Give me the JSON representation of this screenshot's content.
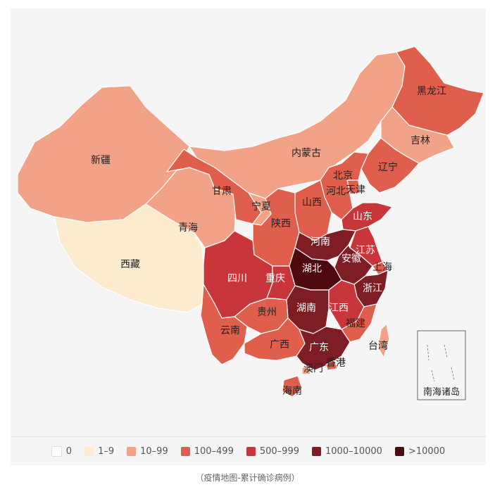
{
  "legend": [
    {
      "label": "0",
      "color": "#ffffff"
    },
    {
      "label": "1–9",
      "color": "#fdebcf"
    },
    {
      "label": "10–99",
      "color": "#f2a286"
    },
    {
      "label": "100–499",
      "color": "#e05e4c"
    },
    {
      "label": "500–999",
      "color": "#c8363b"
    },
    {
      "label": "1000–10000",
      "color": "#7f1d24"
    },
    {
      "label": ">10000",
      "color": "#4f0a0f"
    }
  ],
  "provinces": [
    {
      "id": "xinjiang",
      "name": "新疆",
      "level": 2
    },
    {
      "id": "xizang",
      "name": "西藏",
      "level": 1
    },
    {
      "id": "qinghai",
      "name": "青海",
      "level": 2
    },
    {
      "id": "gansu",
      "name": "甘肃",
      "level": 3
    },
    {
      "id": "neimenggu",
      "name": "内蒙古",
      "level": 2
    },
    {
      "id": "heilongjiang",
      "name": "黑龙江",
      "level": 3
    },
    {
      "id": "jilin",
      "name": "吉林",
      "level": 2
    },
    {
      "id": "liaoning",
      "name": "辽宁",
      "level": 3
    },
    {
      "id": "beijing",
      "name": "北京",
      "level": 3
    },
    {
      "id": "tianjin",
      "name": "天津",
      "level": 3
    },
    {
      "id": "hebei",
      "name": "河北",
      "level": 3
    },
    {
      "id": "shanxi",
      "name": "山西",
      "level": 3
    },
    {
      "id": "ningxia",
      "name": "宁夏",
      "level": 2
    },
    {
      "id": "shaanxi",
      "name": "陕西",
      "level": 3
    },
    {
      "id": "shandong",
      "name": "山东",
      "level": 4
    },
    {
      "id": "henan",
      "name": "河南",
      "level": 5
    },
    {
      "id": "jiangsu",
      "name": "江苏",
      "level": 4
    },
    {
      "id": "anhui",
      "name": "安徽",
      "level": 5
    },
    {
      "id": "shanghai",
      "name": "上海",
      "level": 3
    },
    {
      "id": "hubei",
      "name": "湖北",
      "level": 6
    },
    {
      "id": "sichuan",
      "name": "四川",
      "level": 4
    },
    {
      "id": "chongqing",
      "name": "重庆",
      "level": 4
    },
    {
      "id": "zhejiang",
      "name": "浙江",
      "level": 5
    },
    {
      "id": "hunan",
      "name": "湖南",
      "level": 5
    },
    {
      "id": "jiangxi",
      "name": "江西",
      "level": 4
    },
    {
      "id": "guizhou",
      "name": "贵州",
      "level": 3
    },
    {
      "id": "fujian",
      "name": "福建",
      "level": 3
    },
    {
      "id": "yunnan",
      "name": "云南",
      "level": 3
    },
    {
      "id": "guangxi",
      "name": "广西",
      "level": 3
    },
    {
      "id": "guangdong",
      "name": "广东",
      "level": 5
    },
    {
      "id": "xianggang",
      "name": "香港",
      "level": 3
    },
    {
      "id": "aomen",
      "name": "澳门",
      "level": 2
    },
    {
      "id": "taiwan",
      "name": "台湾",
      "level": 2
    },
    {
      "id": "hainan",
      "name": "海南",
      "level": 3
    }
  ],
  "inset_label": "南海诸岛",
  "caption": "（疫情地图-累计确诊病例）"
}
